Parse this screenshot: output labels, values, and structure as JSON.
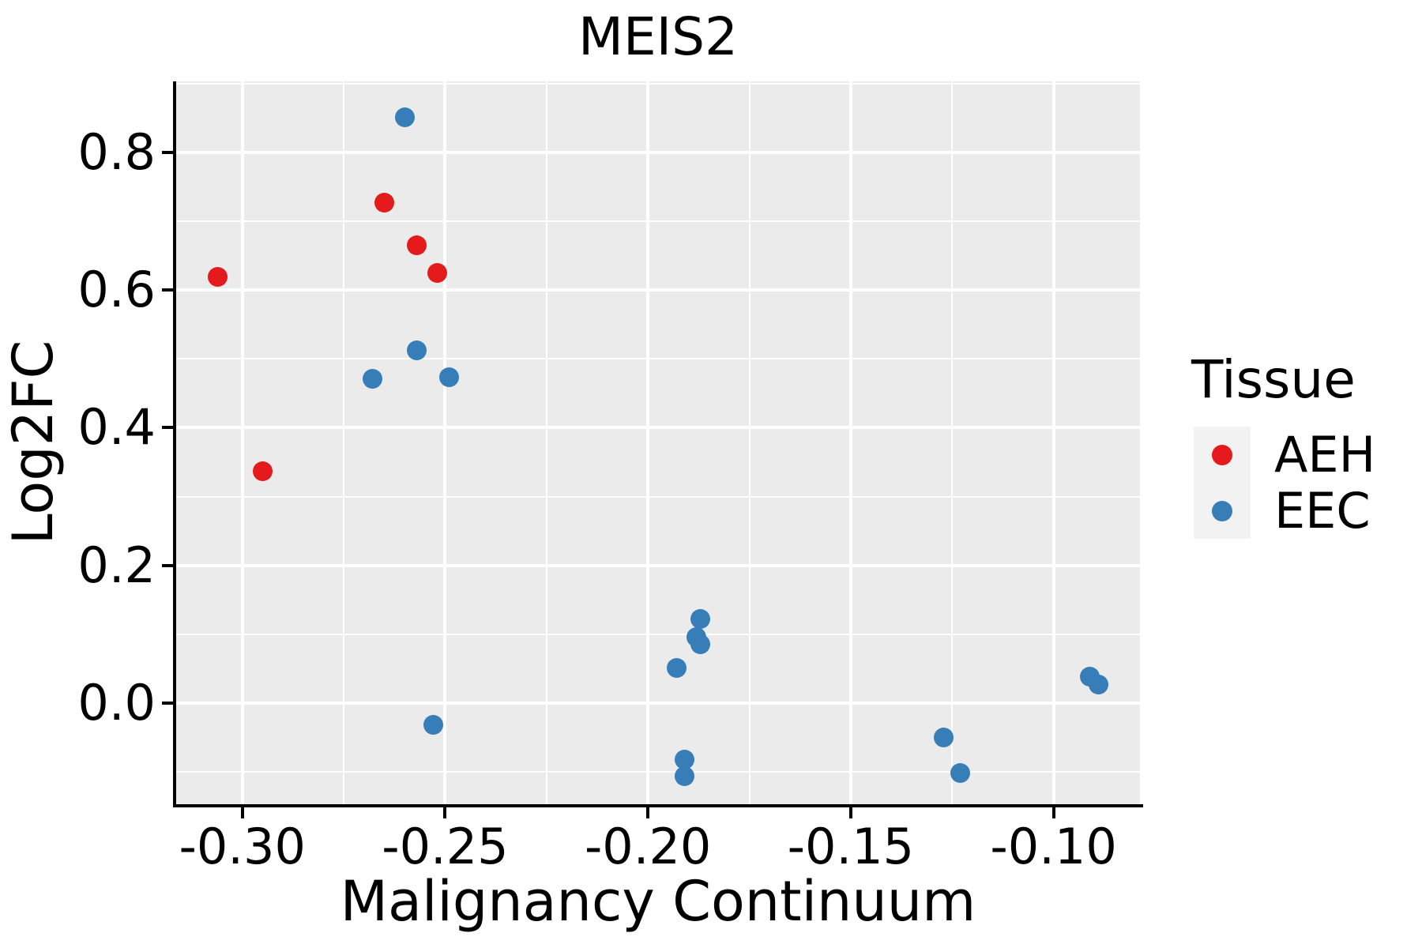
{
  "chart": {
    "title": "MEIS2",
    "x_axis": {
      "label": "Malignancy Continuum",
      "tick_values": [
        -0.3,
        -0.25,
        -0.2,
        -0.15,
        -0.1
      ],
      "tick_labels": [
        "-0.30",
        "-0.25",
        "-0.20",
        "-0.15",
        "-0.10"
      ],
      "minor_tick_values": [
        -0.275,
        -0.225,
        -0.175,
        -0.125
      ]
    },
    "y_axis": {
      "label": "Log2FC",
      "tick_values": [
        0.0,
        0.2,
        0.4,
        0.6,
        0.8
      ],
      "tick_labels": [
        "0.0",
        "0.2",
        "0.4",
        "0.6",
        "0.8"
      ],
      "minor_tick_values": [
        -0.1,
        0.1,
        0.3,
        0.5,
        0.7,
        0.9
      ]
    },
    "legend": {
      "title": "Tissue",
      "items": [
        {
          "label": "AEH",
          "color": "#E41A1C"
        },
        {
          "label": "EEC",
          "color": "#377EB8"
        }
      ]
    },
    "colors": {
      "panel_background": "#EBEBEB",
      "grid": "#FFFFFF",
      "axis": "#000000",
      "legend_key_background": "#F2F2F2",
      "aeh_red": "#E41A1C",
      "eec_blue": "#377EB8"
    }
  },
  "chart_data": {
    "type": "scatter",
    "title": "MEIS2",
    "xlabel": "Malignancy Continuum",
    "ylabel": "Log2FC",
    "xlim": [
      -0.3163,
      -0.0787
    ],
    "ylim": [
      -0.1469,
      0.9031
    ],
    "grid": true,
    "legend_position": "right",
    "series": [
      {
        "name": "AEH",
        "color": "#E41A1C",
        "points": [
          [
            -0.306,
            0.619
          ],
          [
            -0.295,
            0.337
          ],
          [
            -0.265,
            0.727
          ],
          [
            -0.257,
            0.665
          ],
          [
            -0.252,
            0.625
          ]
        ]
      },
      {
        "name": "EEC",
        "color": "#377EB8",
        "points": [
          [
            -0.26,
            0.851
          ],
          [
            -0.268,
            0.471
          ],
          [
            -0.257,
            0.512
          ],
          [
            -0.249,
            0.473
          ],
          [
            -0.253,
            -0.032
          ],
          [
            -0.187,
            0.122
          ],
          [
            -0.188,
            0.096
          ],
          [
            -0.187,
            0.086
          ],
          [
            -0.193,
            0.051
          ],
          [
            -0.191,
            -0.082
          ],
          [
            -0.191,
            -0.106
          ],
          [
            -0.127,
            -0.05
          ],
          [
            -0.123,
            -0.102
          ],
          [
            -0.091,
            0.038
          ],
          [
            -0.089,
            0.027
          ]
        ]
      }
    ]
  }
}
